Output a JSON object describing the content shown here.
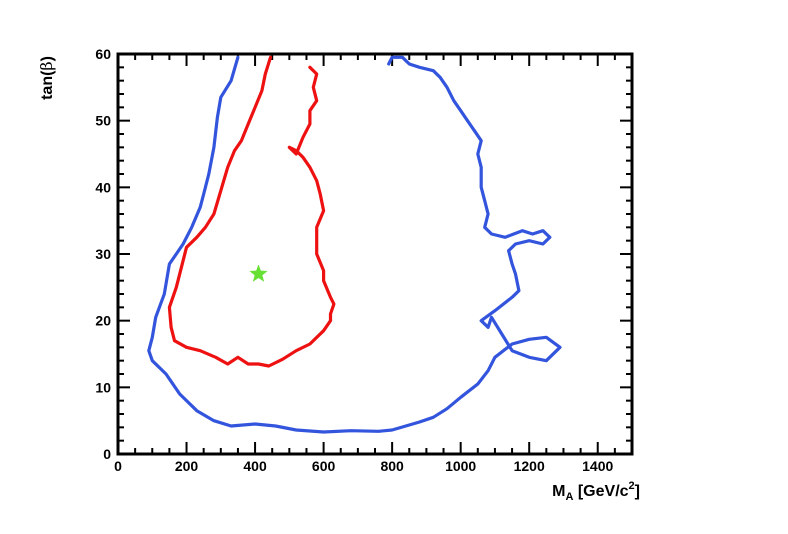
{
  "chart_data": {
    "type": "line",
    "title": "",
    "xlabel": {
      "main": "M",
      "sub": "A",
      "unit_pre": " [GeV/c",
      "sup": "2",
      "unit_post": "]"
    },
    "ylabel": {
      "pre": "tan(",
      "symbol": "β",
      "post": ")"
    },
    "xlim": [
      0,
      1500
    ],
    "ylim": [
      0,
      60
    ],
    "xticks": [
      0,
      200,
      400,
      600,
      800,
      1000,
      1200,
      1400
    ],
    "yticks": [
      0,
      10,
      20,
      30,
      40,
      50,
      60
    ],
    "xtick_labels": [
      "0",
      "200",
      "400",
      "600",
      "800",
      "1000",
      "1200",
      "1400"
    ],
    "ytick_labels": [
      "0",
      "10",
      "20",
      "30",
      "40",
      "50",
      "60"
    ],
    "grid": false,
    "series": [
      {
        "color": "#3355dd",
        "closed": false,
        "points": [
          [
            350,
            59.5
          ],
          [
            330,
            56
          ],
          [
            300,
            53.5
          ],
          [
            290,
            50.5
          ],
          [
            280,
            46
          ],
          [
            265,
            42
          ],
          [
            250,
            39
          ],
          [
            240,
            37
          ],
          [
            215,
            34
          ],
          [
            190,
            31.5
          ],
          [
            170,
            30
          ],
          [
            150,
            28.5
          ],
          [
            135,
            24
          ],
          [
            110,
            20.5
          ],
          [
            100,
            17.5
          ],
          [
            90,
            15.5
          ],
          [
            100,
            14
          ],
          [
            140,
            12
          ],
          [
            180,
            9
          ],
          [
            230,
            6.5
          ],
          [
            280,
            5
          ],
          [
            330,
            4.2
          ],
          [
            400,
            4.5
          ],
          [
            460,
            4.2
          ],
          [
            520,
            3.6
          ],
          [
            600,
            3.3
          ],
          [
            680,
            3.5
          ],
          [
            760,
            3.4
          ],
          [
            800,
            3.6
          ],
          [
            840,
            4.2
          ],
          [
            880,
            4.8
          ],
          [
            920,
            5.5
          ],
          [
            960,
            6.8
          ],
          [
            1000,
            8.5
          ],
          [
            1050,
            10.5
          ],
          [
            1080,
            12.5
          ],
          [
            1100,
            14.5
          ],
          [
            1150,
            16.5
          ],
          [
            1200,
            17.2
          ],
          [
            1250,
            17.5
          ],
          [
            1290,
            16
          ],
          [
            1250,
            14
          ],
          [
            1200,
            14.5
          ],
          [
            1150,
            15.5
          ],
          [
            1120,
            18
          ],
          [
            1090,
            20.5
          ],
          [
            1080,
            19
          ],
          [
            1060,
            20
          ],
          [
            1100,
            21.5
          ],
          [
            1150,
            23.5
          ],
          [
            1170,
            24.5
          ],
          [
            1160,
            27
          ],
          [
            1150,
            28.5
          ],
          [
            1140,
            30.5
          ],
          [
            1160,
            31.5
          ],
          [
            1200,
            32
          ],
          [
            1240,
            31.5
          ],
          [
            1260,
            32.5
          ],
          [
            1240,
            33.5
          ],
          [
            1210,
            33
          ],
          [
            1180,
            33.5
          ],
          [
            1130,
            32.5
          ],
          [
            1090,
            33
          ],
          [
            1070,
            34
          ],
          [
            1080,
            36
          ],
          [
            1070,
            38
          ],
          [
            1060,
            40
          ],
          [
            1060,
            43
          ],
          [
            1050,
            45
          ],
          [
            1060,
            47
          ],
          [
            1040,
            48.5
          ],
          [
            1020,
            50
          ],
          [
            1000,
            51.5
          ],
          [
            980,
            53
          ],
          [
            960,
            55
          ],
          [
            940,
            56.5
          ],
          [
            920,
            57.5
          ],
          [
            880,
            58
          ],
          [
            850,
            58.5
          ],
          [
            830,
            59.5
          ],
          [
            800,
            59.5
          ],
          [
            790,
            58.5
          ]
        ]
      },
      {
        "color": "#ee1111",
        "closed": false,
        "points": [
          [
            445,
            59.5
          ],
          [
            430,
            57
          ],
          [
            420,
            54.5
          ],
          [
            400,
            52
          ],
          [
            380,
            49.5
          ],
          [
            360,
            47
          ],
          [
            340,
            45.5
          ],
          [
            320,
            43
          ],
          [
            300,
            39.5
          ],
          [
            280,
            36
          ],
          [
            255,
            34
          ],
          [
            230,
            32.5
          ],
          [
            200,
            31
          ],
          [
            185,
            28
          ],
          [
            170,
            25
          ],
          [
            150,
            22
          ],
          [
            155,
            19
          ],
          [
            165,
            17
          ],
          [
            200,
            16
          ],
          [
            240,
            15.5
          ],
          [
            285,
            14.5
          ],
          [
            320,
            13.5
          ],
          [
            350,
            14.5
          ],
          [
            380,
            13.5
          ],
          [
            410,
            13.5
          ],
          [
            440,
            13.2
          ],
          [
            480,
            14.2
          ],
          [
            520,
            15.5
          ],
          [
            560,
            16.5
          ],
          [
            600,
            18.5
          ],
          [
            620,
            20
          ],
          [
            620,
            21
          ],
          [
            630,
            22.5
          ],
          [
            620,
            23.5
          ],
          [
            600,
            26
          ],
          [
            600,
            27.5
          ],
          [
            580,
            30
          ],
          [
            580,
            32
          ],
          [
            580,
            34
          ],
          [
            600,
            36.5
          ],
          [
            590,
            39
          ],
          [
            580,
            41
          ],
          [
            560,
            43
          ],
          [
            540,
            44.5
          ],
          [
            520,
            45.5
          ],
          [
            500,
            46
          ],
          [
            520,
            45
          ],
          [
            540,
            47.5
          ],
          [
            560,
            49.5
          ],
          [
            560,
            51.5
          ],
          [
            580,
            53
          ],
          [
            570,
            55
          ],
          [
            580,
            57
          ],
          [
            560,
            58
          ]
        ]
      }
    ],
    "markers": [
      {
        "type": "star",
        "x": 410,
        "y": 27,
        "color": "#66e033"
      }
    ]
  }
}
